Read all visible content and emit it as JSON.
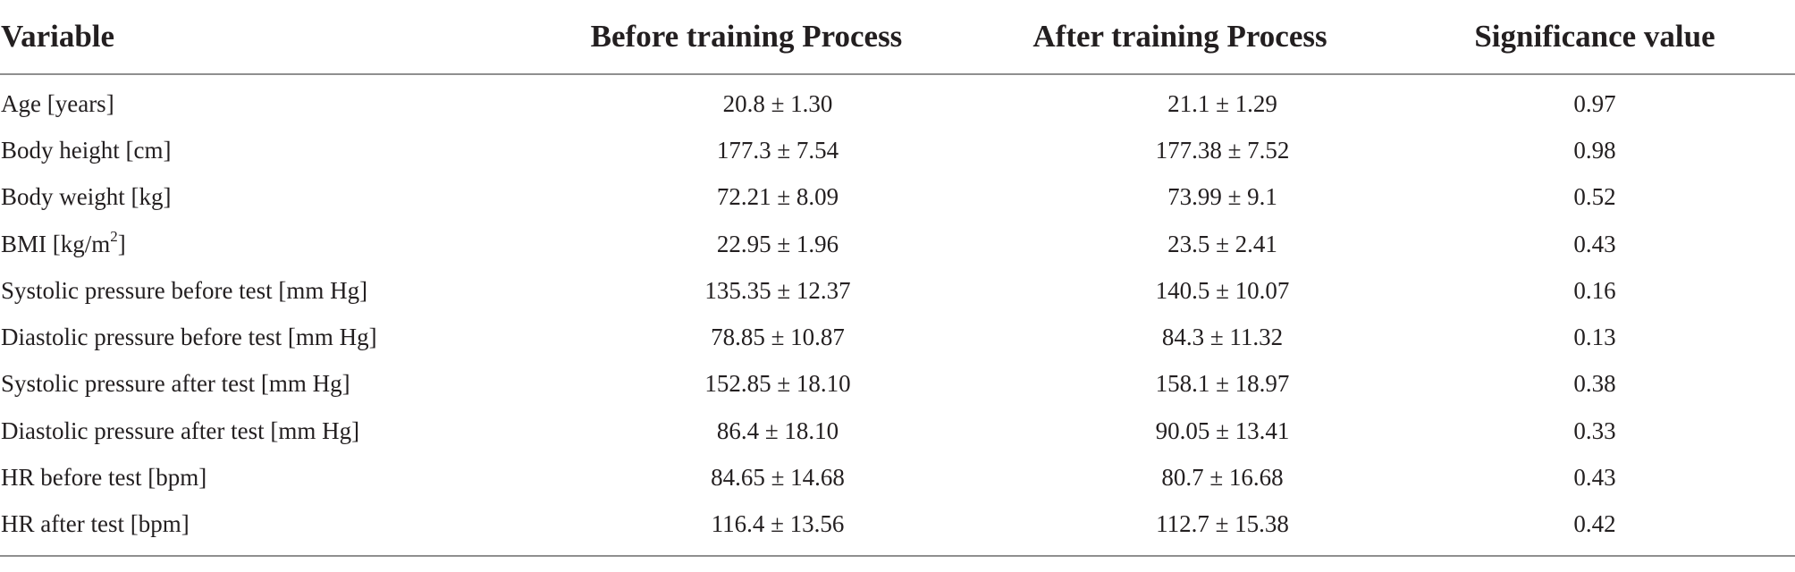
{
  "table": {
    "headers": {
      "variable": "Variable",
      "before": "Before training Process",
      "after": "After training Process",
      "significance": "Significance value"
    },
    "rows": [
      {
        "variable": "Age [years]",
        "before": "20.8 ± 1.30",
        "after": "21.1 ± 1.29",
        "significance": "0.97"
      },
      {
        "variable": "Body height [cm]",
        "before": "177.3 ± 7.54",
        "after": "177.38 ± 7.52",
        "significance": "0.98"
      },
      {
        "variable": "Body weight [kg]",
        "before": "72.21 ± 8.09",
        "after": "73.99 ± 9.1",
        "significance": "0.52"
      },
      {
        "variable_prefix": "BMI [kg/m",
        "variable_sup": "2",
        "variable_suffix": "]",
        "before": "22.95 ± 1.96",
        "after": "23.5 ± 2.41",
        "significance": "0.43"
      },
      {
        "variable": "Systolic pressure before test [mm Hg]",
        "before": "135.35 ± 12.37",
        "after": "140.5 ± 10.07",
        "significance": "0.16"
      },
      {
        "variable": "Diastolic pressure before test [mm Hg]",
        "before": "78.85 ± 10.87",
        "after": "84.3 ± 11.32",
        "significance": "0.13"
      },
      {
        "variable": "Systolic pressure after test [mm Hg]",
        "before": "152.85 ± 18.10",
        "after": "158.1 ± 18.97",
        "significance": "0.38"
      },
      {
        "variable": "Diastolic pressure after test [mm Hg]",
        "before": "86.4 ± 18.10",
        "after": "90.05 ± 13.41",
        "significance": "0.33"
      },
      {
        "variable": "HR before test [bpm]",
        "before": "84.65 ± 14.68",
        "after": "80.7 ± 16.68",
        "significance": "0.43"
      },
      {
        "variable": "HR after test [bpm]",
        "before": "116.4 ± 13.56",
        "after": "112.7 ± 15.38",
        "significance": "0.42"
      }
    ]
  }
}
